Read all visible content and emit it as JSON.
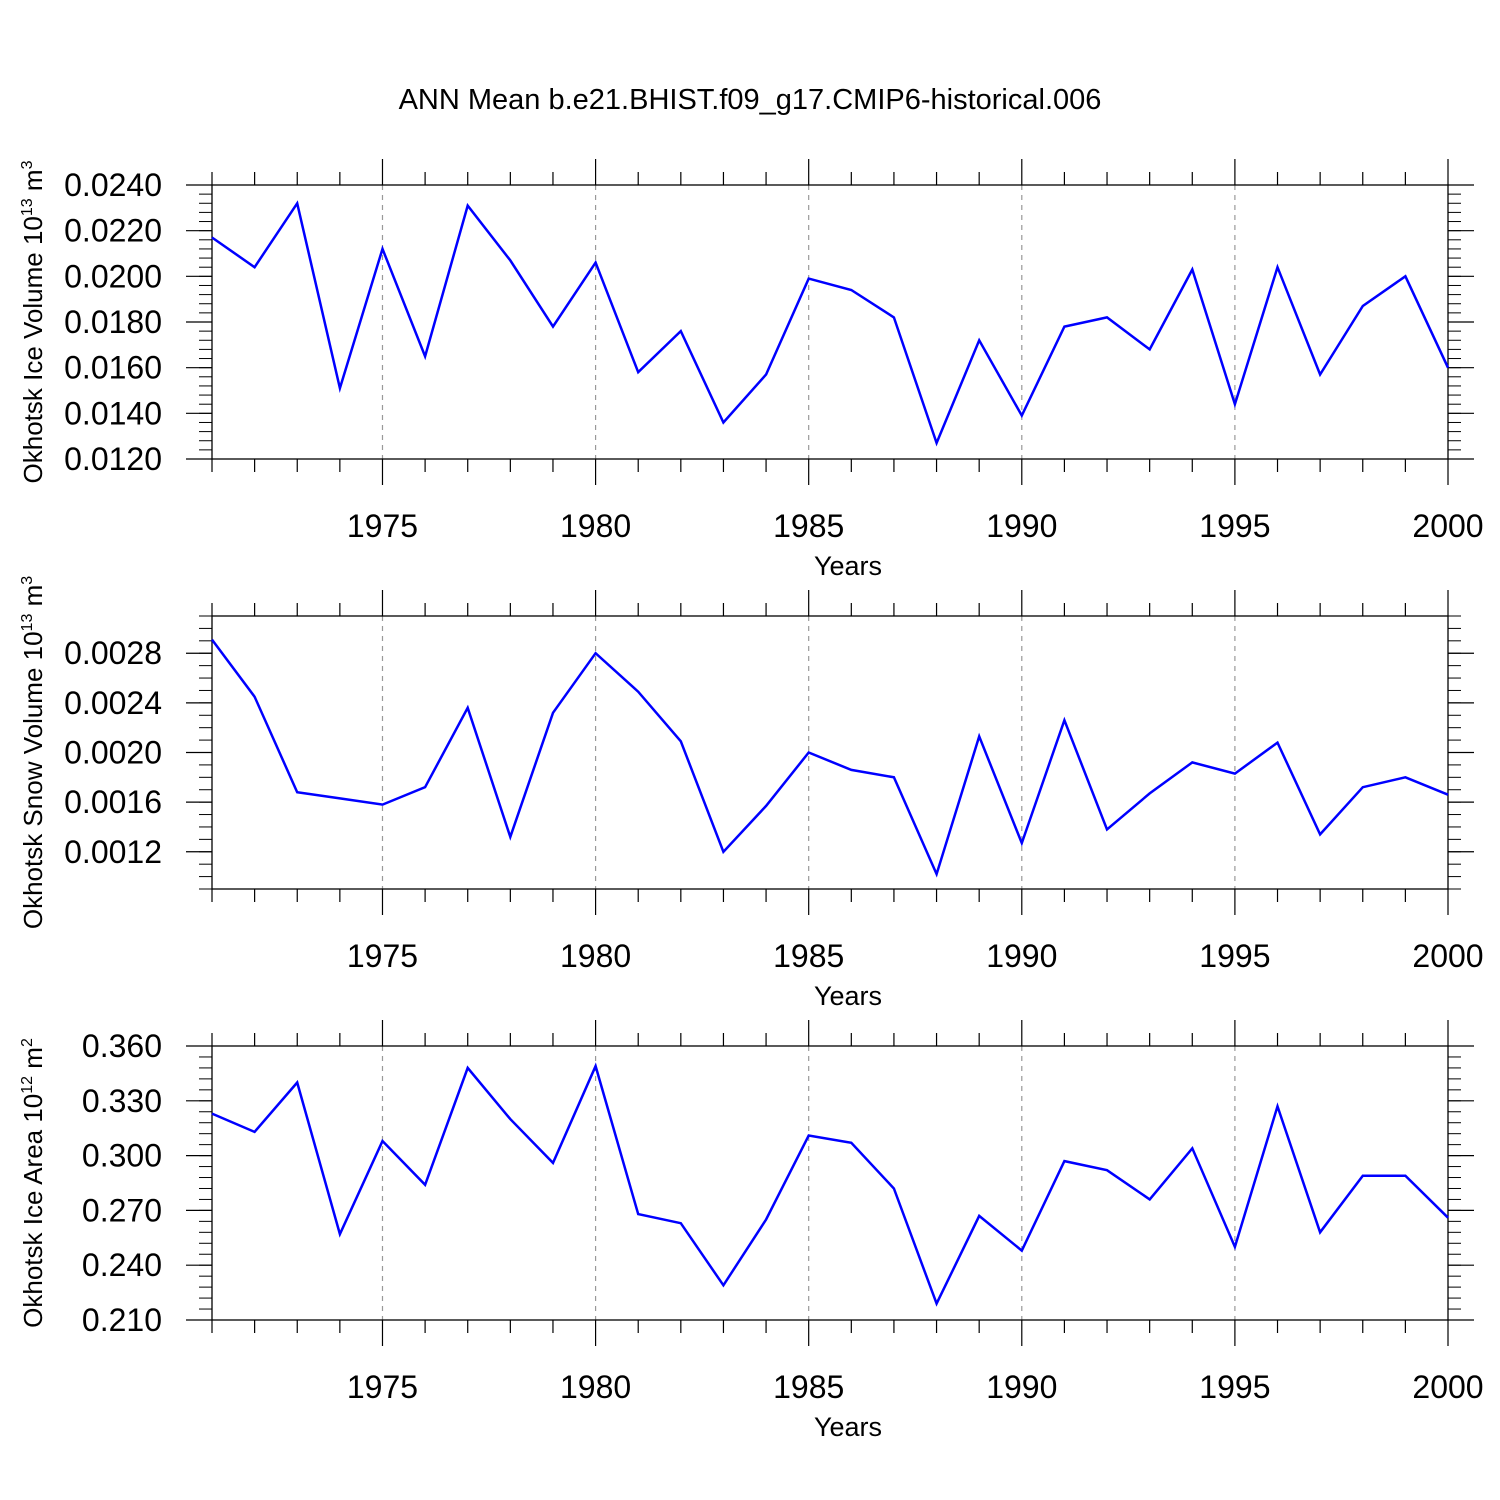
{
  "figure_title": "ANN Mean b.e21.BHIST.f09_g17.CMIP6-historical.006",
  "colors": {
    "line": "#0000ff",
    "axes": "#000000",
    "grid": "#999999"
  },
  "chart_data": [
    {
      "type": "line",
      "ylabel": "Okhotsk Ice Volume",
      "ylabel_units": {
        "base": "10",
        "exponent": "13",
        "unit": "m",
        "unit_exponent": "3"
      },
      "xlabel": "Years",
      "x": [
        1971,
        1972,
        1973,
        1974,
        1975,
        1976,
        1977,
        1978,
        1979,
        1980,
        1981,
        1982,
        1983,
        1984,
        1985,
        1986,
        1987,
        1988,
        1989,
        1990,
        1991,
        1992,
        1993,
        1994,
        1995,
        1996,
        1997,
        1998,
        1999,
        2000
      ],
      "values": [
        0.0217,
        0.0204,
        0.0232,
        0.0151,
        0.0212,
        0.0165,
        0.0231,
        0.0207,
        0.0178,
        0.0206,
        0.0158,
        0.0176,
        0.0136,
        0.0157,
        0.0199,
        0.0194,
        0.0182,
        0.0127,
        0.0172,
        0.0139,
        0.0178,
        0.0182,
        0.0168,
        0.0203,
        0.0144,
        0.0204,
        0.0157,
        0.0187,
        0.02,
        0.016
      ],
      "xlim": [
        1971,
        2000
      ],
      "ylim": [
        0.012,
        0.024
      ],
      "xticks": [
        1975,
        1980,
        1985,
        1990,
        1995,
        2000
      ],
      "yticks": [
        0.012,
        0.014,
        0.016,
        0.018,
        0.02,
        0.022,
        0.024
      ],
      "ytick_labels": [
        "0.0120",
        "0.0140",
        "0.0160",
        "0.0180",
        "0.0200",
        "0.0220",
        "0.0240"
      ],
      "y_minor_step": 0.0004,
      "grid": "vertical dashed at major x ticks"
    },
    {
      "type": "line",
      "ylabel": "Okhotsk Snow Volume",
      "ylabel_units": {
        "base": "10",
        "exponent": "13",
        "unit": "m",
        "unit_exponent": "3"
      },
      "xlabel": "Years",
      "x": [
        1971,
        1972,
        1973,
        1974,
        1975,
        1976,
        1977,
        1978,
        1979,
        1980,
        1981,
        1982,
        1983,
        1984,
        1985,
        1986,
        1987,
        1988,
        1989,
        1990,
        1991,
        1992,
        1993,
        1994,
        1995,
        1996,
        1997,
        1998,
        1999,
        2000
      ],
      "values": [
        0.00291,
        0.00245,
        0.00168,
        0.00163,
        0.00158,
        0.00172,
        0.00236,
        0.00132,
        0.00232,
        0.0028,
        0.00249,
        0.00209,
        0.0012,
        0.00157,
        0.002,
        0.00186,
        0.0018,
        0.00102,
        0.00213,
        0.00127,
        0.00226,
        0.00138,
        0.00167,
        0.00192,
        0.00183,
        0.00208,
        0.00134,
        0.00172,
        0.0018,
        0.00166
      ],
      "xlim": [
        1971,
        2000
      ],
      "ylim": [
        0.0009,
        0.0031
      ],
      "xticks": [
        1975,
        1980,
        1985,
        1990,
        1995,
        2000
      ],
      "yticks": [
        0.0012,
        0.0016,
        0.002,
        0.0024,
        0.0028
      ],
      "ytick_labels": [
        "0.0012",
        "0.0016",
        "0.0020",
        "0.0024",
        "0.0028"
      ],
      "y_minor_step": 0.0001,
      "grid": "vertical dashed at major x ticks"
    },
    {
      "type": "line",
      "ylabel": "Okhotsk Ice Area",
      "ylabel_units": {
        "base": "10",
        "exponent": "12",
        "unit": "m",
        "unit_exponent": "2"
      },
      "xlabel": "Years",
      "x": [
        1971,
        1972,
        1973,
        1974,
        1975,
        1976,
        1977,
        1978,
        1979,
        1980,
        1981,
        1982,
        1983,
        1984,
        1985,
        1986,
        1987,
        1988,
        1989,
        1990,
        1991,
        1992,
        1993,
        1994,
        1995,
        1996,
        1997,
        1998,
        1999,
        2000
      ],
      "values": [
        0.323,
        0.313,
        0.34,
        0.257,
        0.308,
        0.284,
        0.348,
        0.32,
        0.296,
        0.349,
        0.268,
        0.263,
        0.229,
        0.265,
        0.311,
        0.307,
        0.282,
        0.219,
        0.267,
        0.248,
        0.297,
        0.292,
        0.276,
        0.304,
        0.25,
        0.327,
        0.258,
        0.289,
        0.289,
        0.266
      ],
      "xlim": [
        1971,
        2000
      ],
      "ylim": [
        0.21,
        0.36
      ],
      "xticks": [
        1975,
        1980,
        1985,
        1990,
        1995,
        2000
      ],
      "yticks": [
        0.21,
        0.24,
        0.27,
        0.3,
        0.33,
        0.36
      ],
      "ytick_labels": [
        "0.210",
        "0.240",
        "0.270",
        "0.300",
        "0.330",
        "0.360"
      ],
      "y_minor_step": 0.006,
      "grid": "vertical dashed at major x ticks"
    }
  ]
}
